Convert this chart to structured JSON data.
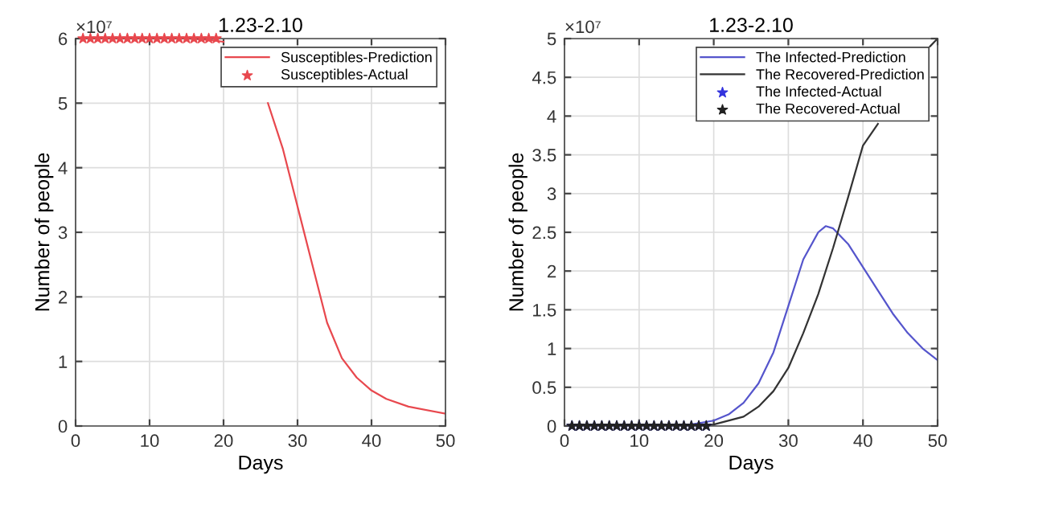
{
  "chart_data": [
    {
      "type": "line",
      "title": "1.23-2.10",
      "xlabel": "Days",
      "ylabel": "Number of people",
      "annotations": [
        "×10⁷"
      ],
      "xlim": [
        0,
        50
      ],
      "ylim": [
        0,
        6
      ],
      "xticks": [
        0,
        10,
        20,
        30,
        40,
        50
      ],
      "yticks": [
        0,
        1,
        2,
        3,
        4,
        5,
        6
      ],
      "grid": true,
      "legend": "top right",
      "series": [
        {
          "name": "Susceptibles-Prediction",
          "color": "#e8484e",
          "x": [
            1,
            5,
            10,
            15,
            18,
            20,
            22,
            26,
            28,
            30,
            32,
            34,
            36,
            38,
            40,
            42,
            45,
            50
          ],
          "values": [
            6.0,
            6.0,
            6.0,
            6.0,
            5.98,
            5.95,
            null,
            5.0,
            4.3,
            3.4,
            2.5,
            1.6,
            1.05,
            0.75,
            0.55,
            0.42,
            0.3,
            0.19
          ]
        },
        {
          "name": "Susceptibles-Actual",
          "type": "scatter",
          "marker": "star",
          "color": "#e8484e",
          "x": [
            1,
            2,
            3,
            4,
            5,
            6,
            7,
            8,
            9,
            10,
            11,
            12,
            13,
            14,
            15,
            16,
            17,
            18,
            19
          ],
          "values": [
            6,
            6,
            6,
            6,
            6,
            6,
            6,
            6,
            6,
            6,
            6,
            6,
            6,
            6,
            6,
            6,
            6,
            6,
            6
          ]
        }
      ]
    },
    {
      "type": "line",
      "title": "1.23-2.10",
      "xlabel": "Days",
      "ylabel": "Number of people",
      "annotations": [
        "×10⁷"
      ],
      "xlim": [
        0,
        50
      ],
      "ylim": [
        0,
        5
      ],
      "xticks": [
        0,
        10,
        20,
        30,
        40,
        50
      ],
      "yticks": [
        0,
        0.5,
        1,
        1.5,
        2,
        2.5,
        3,
        3.5,
        4,
        4.5,
        5
      ],
      "grid": true,
      "legend": "top right",
      "series": [
        {
          "name": "The Infected-Prediction",
          "color": "#5555cc",
          "x": [
            1,
            10,
            17,
            20,
            22,
            24,
            26,
            28,
            30,
            32,
            34,
            35,
            36,
            38,
            40,
            42,
            44,
            46,
            48,
            50
          ],
          "values": [
            0,
            0,
            0.02,
            0.07,
            0.15,
            0.3,
            0.55,
            0.95,
            1.55,
            2.15,
            2.5,
            2.58,
            2.55,
            2.35,
            2.05,
            1.75,
            1.45,
            1.2,
            1.0,
            0.85
          ]
        },
        {
          "name": "The Recovered-Prediction",
          "color": "#333333",
          "x": [
            1,
            10,
            18,
            20,
            24,
            26,
            28,
            30,
            32,
            34,
            36,
            38,
            40,
            42,
            44,
            46,
            48,
            49,
            50
          ],
          "values": [
            0,
            0,
            0.01,
            0.02,
            0.12,
            0.25,
            0.45,
            0.75,
            1.2,
            1.7,
            2.3,
            2.95,
            3.62,
            3.9,
            null,
            null,
            null,
            4.9,
            5.0
          ]
        },
        {
          "name": "The Infected-Actual",
          "type": "scatter",
          "marker": "star",
          "color": "#3333dd",
          "x": [
            1,
            2,
            3,
            4,
            5,
            6,
            7,
            8,
            9,
            10,
            11,
            12,
            13,
            14,
            15,
            16,
            17,
            18,
            19
          ],
          "values": [
            0,
            0,
            0,
            0,
            0,
            0,
            0,
            0,
            0,
            0,
            0,
            0,
            0,
            0,
            0,
            0,
            0,
            0,
            0
          ]
        },
        {
          "name": "The Recovered-Actual",
          "type": "scatter",
          "marker": "star",
          "color": "#222222",
          "x": [
            1,
            2,
            3,
            4,
            5,
            6,
            7,
            8,
            9,
            10,
            11,
            12,
            13,
            14,
            15,
            16,
            17,
            18,
            19
          ],
          "values": [
            0,
            0,
            0,
            0,
            0,
            0,
            0,
            0,
            0,
            0,
            0,
            0,
            0,
            0,
            0,
            0,
            0,
            0,
            0
          ]
        }
      ]
    }
  ]
}
